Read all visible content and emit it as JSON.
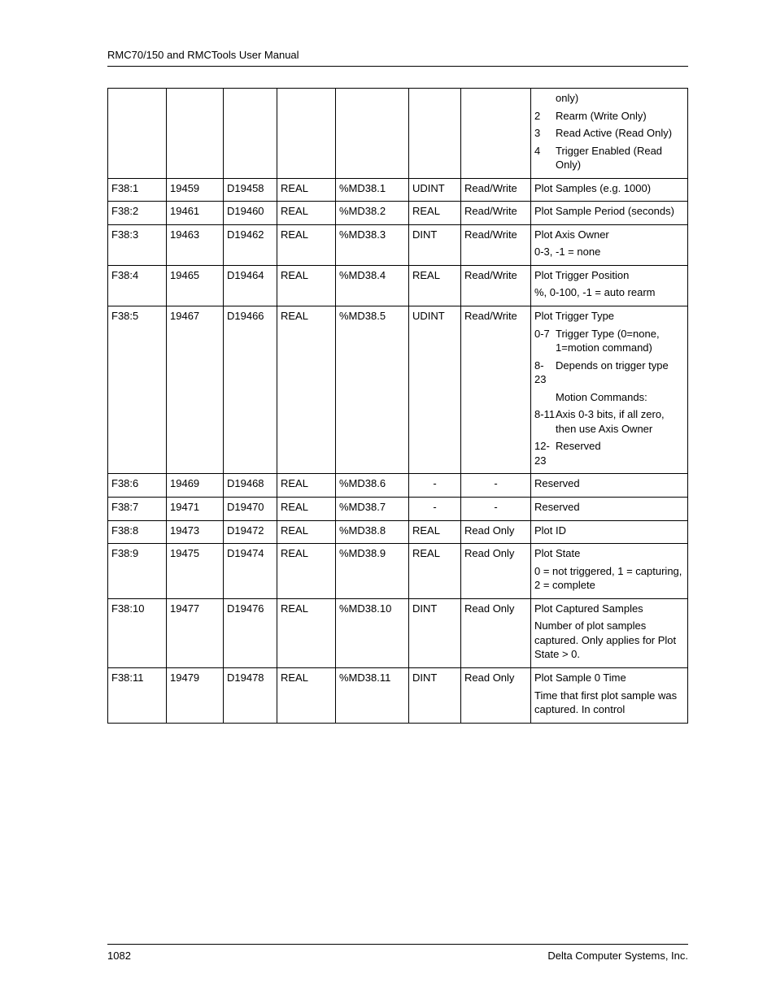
{
  "header": "RMC70/150 and RMCTools User Manual",
  "footer": {
    "page": "1082",
    "company": "Delta Computer Systems, Inc."
  },
  "rows": [
    {
      "cols": [
        "",
        "",
        "",
        "",
        "",
        "",
        ""
      ],
      "desc": {
        "lead": "only)",
        "subs": [
          {
            "k": "2",
            "v": "Rearm (Write Only)"
          },
          {
            "k": "3",
            "v": "Read Active (Read Only)"
          },
          {
            "k": "4",
            "v": "Trigger Enabled (Read Only)"
          }
        ]
      }
    },
    {
      "cols": [
        "F38:1",
        "19459",
        "D19458",
        "REAL",
        "%MD38.1",
        "UDINT",
        "Read/Write"
      ],
      "desc": {
        "text": "Plot Samples (e.g. 1000)"
      }
    },
    {
      "cols": [
        "F38:2",
        "19461",
        "D19460",
        "REAL",
        "%MD38.2",
        "REAL",
        "Read/Write"
      ],
      "desc": {
        "text": "Plot Sample Period (seconds)"
      }
    },
    {
      "cols": [
        "F38:3",
        "19463",
        "D19462",
        "REAL",
        "%MD38.3",
        "DINT",
        "Read/Write"
      ],
      "desc": {
        "text": "Plot Axis Owner",
        "after": "0-3, -1 = none"
      }
    },
    {
      "cols": [
        "F38:4",
        "19465",
        "D19464",
        "REAL",
        "%MD38.4",
        "REAL",
        "Read/Write"
      ],
      "desc": {
        "text": "Plot Trigger Position",
        "after": "%, 0-100, -1 = auto rearm"
      }
    },
    {
      "cols": [
        "F38:5",
        "19467",
        "D19466",
        "REAL",
        "%MD38.5",
        "UDINT",
        "Read/Write"
      ],
      "desc": {
        "text": "Plot Trigger Type",
        "subs": [
          {
            "k": "0-7",
            "v": "Trigger Type (0=none, 1=motion command)"
          },
          {
            "k": "8-23",
            "v": "Depends on trigger type"
          }
        ],
        "mid": "Motion Commands:",
        "subs2": [
          {
            "k": "8-11",
            "v": "Axis 0-3 bits, if all zero, then use Axis Owner"
          },
          {
            "k": "12-23",
            "v": "Reserved"
          }
        ]
      }
    },
    {
      "cols": [
        "F38:6",
        "19469",
        "D19468",
        "REAL",
        "%MD38.6",
        "-",
        "-"
      ],
      "center56": true,
      "desc": {
        "text": "Reserved"
      }
    },
    {
      "cols": [
        "F38:7",
        "19471",
        "D19470",
        "REAL",
        "%MD38.7",
        "-",
        "-"
      ],
      "center56": true,
      "desc": {
        "text": "Reserved"
      }
    },
    {
      "cols": [
        "F38:8",
        "19473",
        "D19472",
        "REAL",
        "%MD38.8",
        "REAL",
        "Read Only"
      ],
      "desc": {
        "text": "Plot ID"
      }
    },
    {
      "cols": [
        "F38:9",
        "19475",
        "D19474",
        "REAL",
        "%MD38.9",
        "REAL",
        "Read Only"
      ],
      "desc": {
        "text": "Plot State",
        "after": "0 = not triggered, 1 = capturing, 2 = complete"
      }
    },
    {
      "cols": [
        "F38:10",
        "19477",
        "D19476",
        "REAL",
        "%MD38.10",
        "DINT",
        "Read Only"
      ],
      "desc": {
        "text": "Plot Captured Samples",
        "after": "Number of plot samples captured. Only applies for Plot State > 0."
      }
    },
    {
      "cols": [
        "F38:11",
        "19479",
        "D19478",
        "REAL",
        "%MD38.11",
        "DINT",
        "Read Only"
      ],
      "desc": {
        "text": "Plot Sample 0 Time",
        "after": "Time that first plot sample was captured. In control"
      }
    }
  ]
}
